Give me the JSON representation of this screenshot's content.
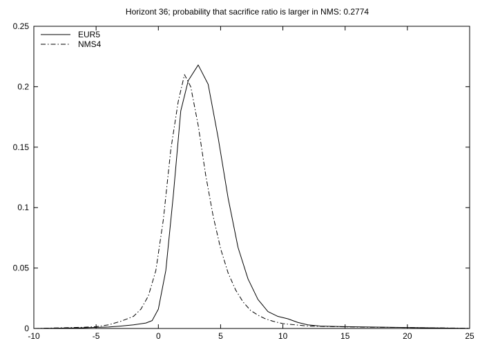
{
  "chart_data": {
    "type": "line",
    "title": "Horizont 36; probability that sacrifice ratio is larger in NMS: 0.2774",
    "xlabel": "",
    "ylabel": "",
    "xlim": [
      -10,
      25
    ],
    "ylim": [
      0,
      0.25
    ],
    "x_ticks": [
      -10,
      -5,
      0,
      5,
      10,
      15,
      20,
      25
    ],
    "x_tick_labels": [
      "-10",
      "-5",
      "0",
      "5",
      "10",
      "15",
      "20",
      "25"
    ],
    "y_ticks": [
      0,
      0.05,
      0.1,
      0.15,
      0.2,
      0.25
    ],
    "y_tick_labels": [
      "0",
      "0.05",
      "0.1",
      "0.15",
      "0.2",
      "0.25"
    ],
    "grid": false,
    "legend_position": "top-left",
    "series": [
      {
        "name": "EUR5",
        "line_style": "solid",
        "x": [
          -10,
          -8,
          -6,
          -4,
          -3,
          -2,
          -1,
          -0.5,
          0,
          0.6,
          1.2,
          1.8,
          2.4,
          3.2,
          4,
          4.8,
          5.6,
          6.4,
          7.2,
          8,
          8.8,
          9.6,
          10.4,
          11.2,
          12,
          13,
          15,
          17,
          20,
          22,
          25
        ],
        "y": [
          0,
          0.0003,
          0.0006,
          0.0012,
          0.002,
          0.003,
          0.0045,
          0.0065,
          0.016,
          0.048,
          0.11,
          0.18,
          0.205,
          0.218,
          0.202,
          0.158,
          0.108,
          0.067,
          0.041,
          0.024,
          0.014,
          0.01,
          0.008,
          0.005,
          0.003,
          0.002,
          0.0015,
          0.0012,
          0.0008,
          0.0005,
          0.0001
        ]
      },
      {
        "name": "NMS4",
        "line_style": "dash-dot",
        "x": [
          -10,
          -8,
          -6,
          -5,
          -4,
          -3,
          -2,
          -1.4,
          -0.8,
          -0.2,
          0.4,
          1,
          1.6,
          2.1,
          2.6,
          3.2,
          3.8,
          4.4,
          5,
          5.6,
          6.2,
          6.8,
          7.4,
          8,
          8.6,
          9.2,
          10,
          11,
          12,
          14,
          17,
          20,
          25
        ],
        "y": [
          0,
          0.0005,
          0.001,
          0.0015,
          0.003,
          0.006,
          0.01,
          0.016,
          0.027,
          0.048,
          0.09,
          0.148,
          0.188,
          0.21,
          0.2,
          0.168,
          0.127,
          0.093,
          0.066,
          0.046,
          0.032,
          0.022,
          0.015,
          0.011,
          0.008,
          0.006,
          0.004,
          0.003,
          0.002,
          0.0015,
          0.001,
          0.0008,
          0.0002
        ]
      }
    ]
  }
}
